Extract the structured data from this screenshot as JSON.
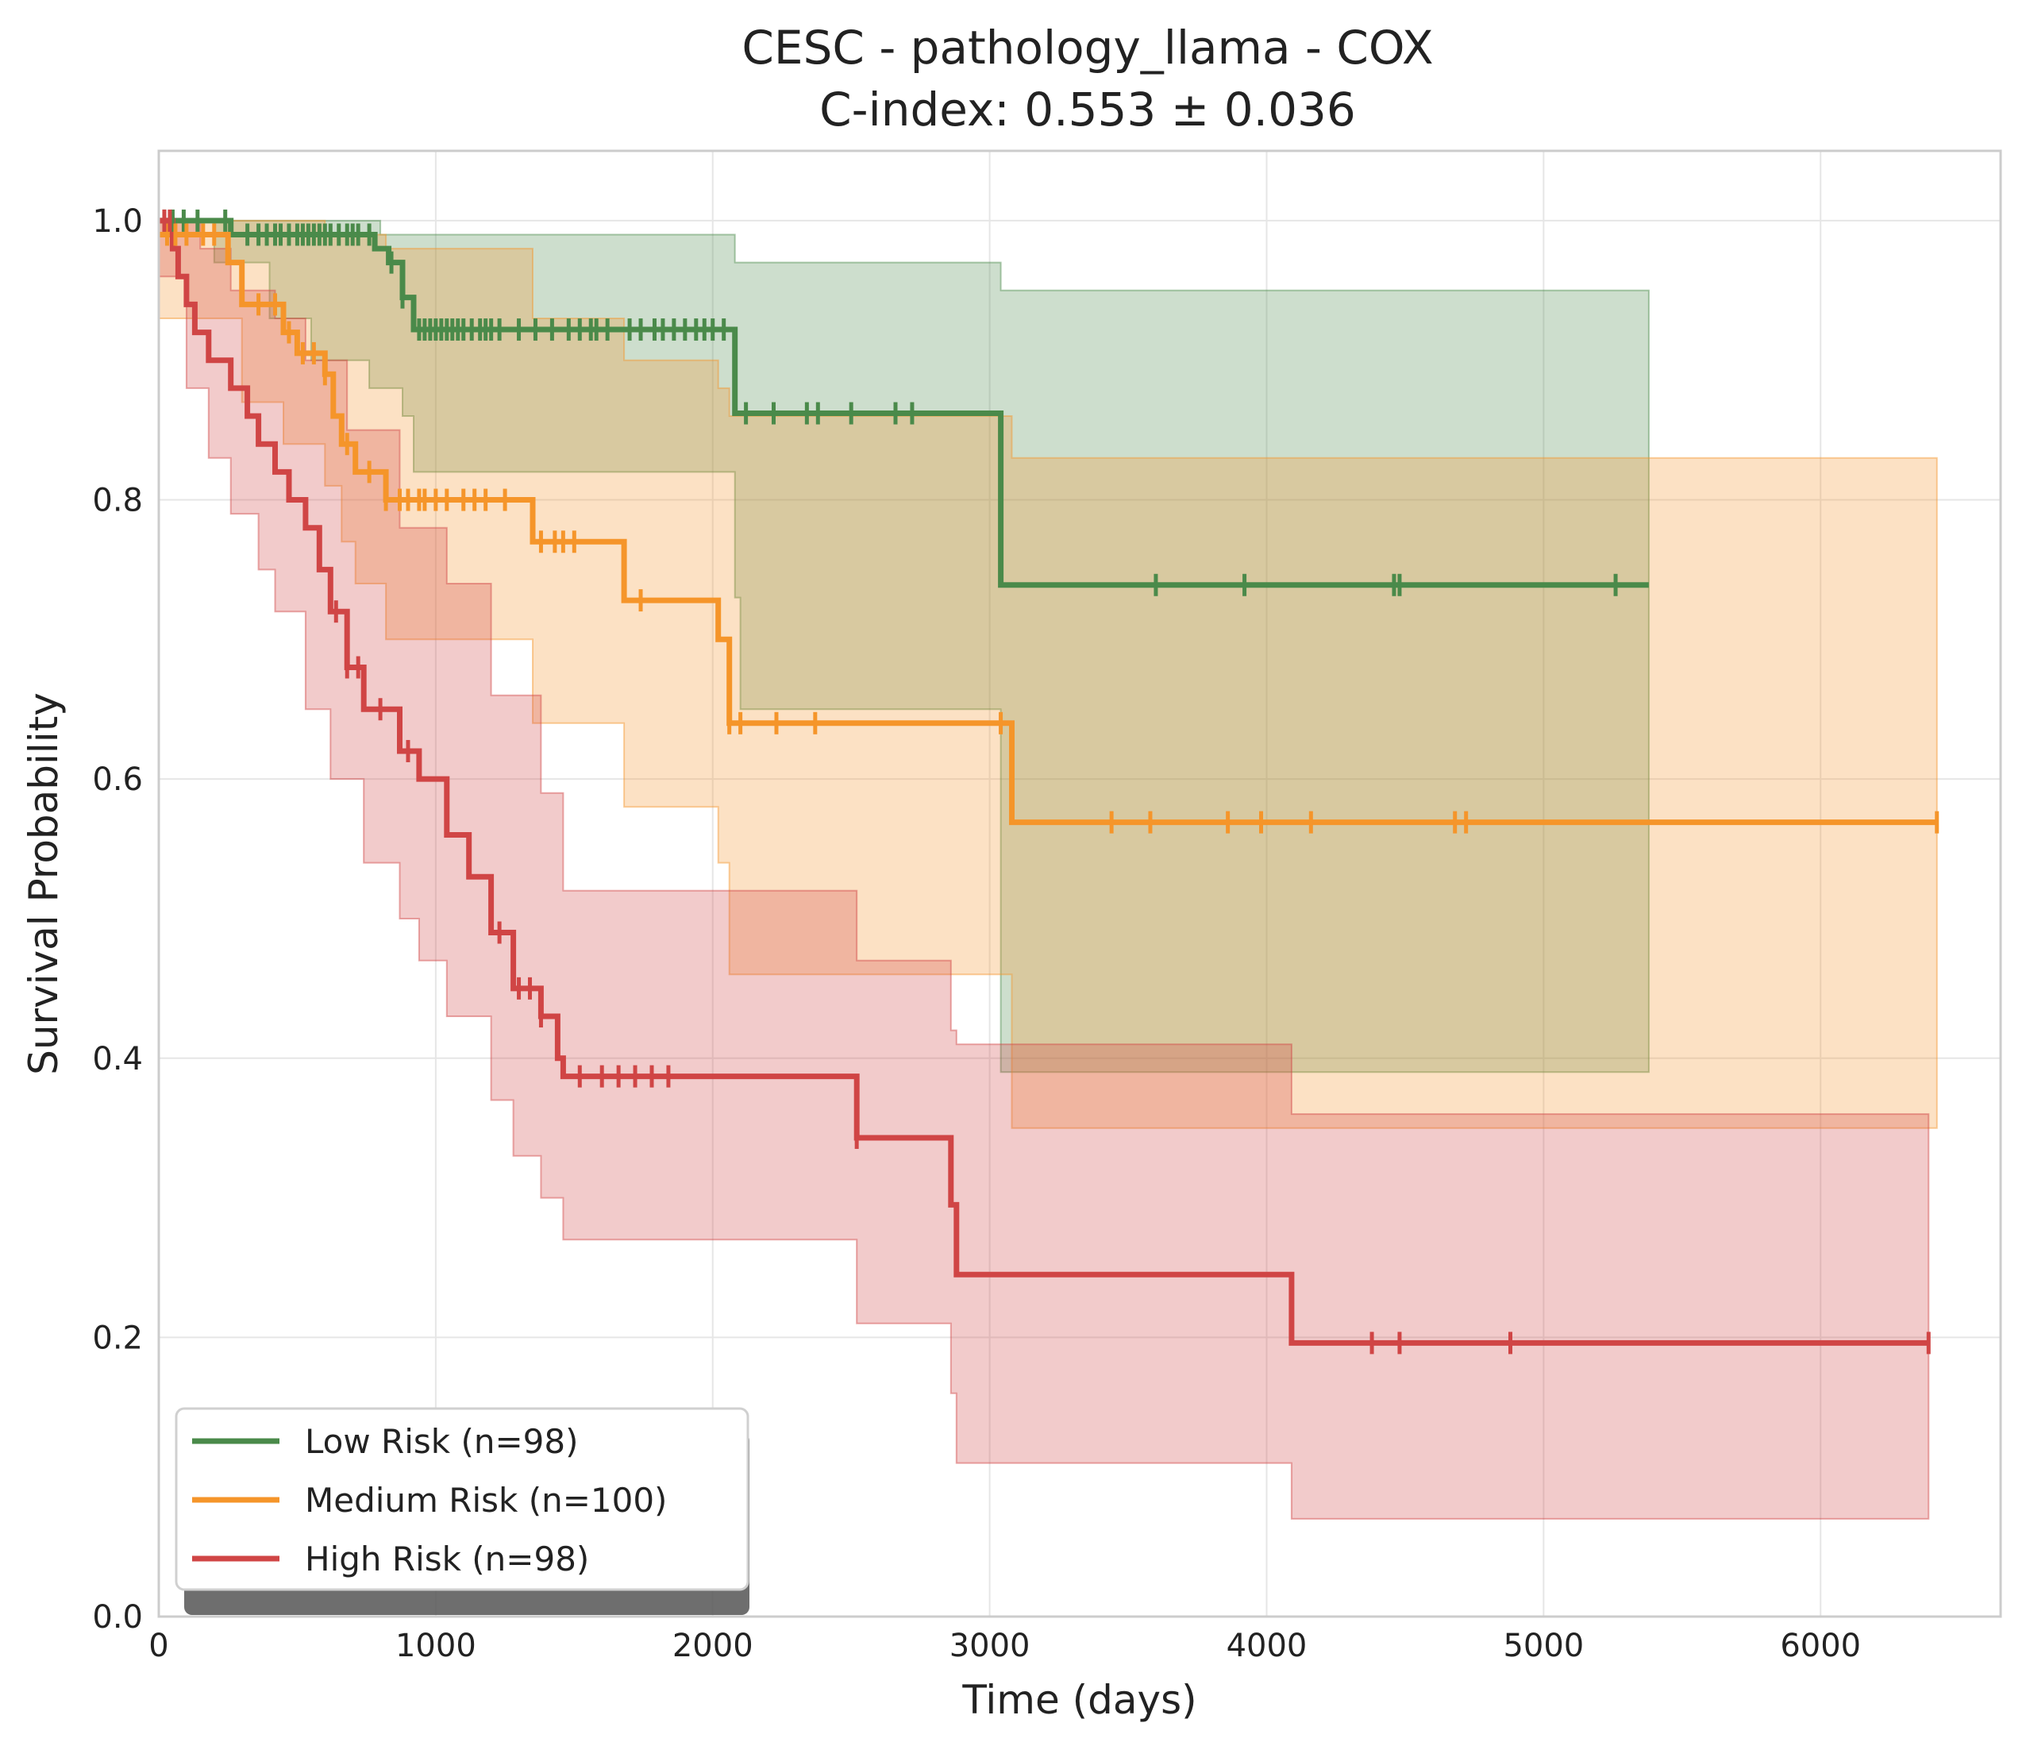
{
  "chart_data": {
    "type": "line",
    "subtype": "kaplan-meier step curves with confidence bands and censor ticks",
    "title_line1": "CESC - pathology_llama - COX",
    "title_line2": "C-index: 0.553 ± 0.036",
    "xlabel": "Time (days)",
    "ylabel": "Survival Probability",
    "xlim": [
      0,
      6650
    ],
    "ylim": [
      0,
      1.05
    ],
    "xticks": [
      0,
      1000,
      2000,
      3000,
      4000,
      5000,
      6000
    ],
    "xtick_labels": [
      "0",
      "1000",
      "2000",
      "3000",
      "4000",
      "5000",
      "6000"
    ],
    "yticks": [
      0,
      0.2,
      0.4,
      0.6,
      0.8,
      1.0
    ],
    "ytick_labels": [
      "0.0",
      "0.2",
      "0.4",
      "0.6",
      "0.8",
      "1.0"
    ],
    "grid": true,
    "legend_position": "lower-left",
    "series": [
      {
        "name": "Low Risk (n=98)",
        "color": "#4a8a4a",
        "steps": [
          [
            0,
            1.0
          ],
          [
            260,
            0.99
          ],
          [
            780,
            0.98
          ],
          [
            830,
            0.97
          ],
          [
            880,
            0.945
          ],
          [
            920,
            0.922
          ],
          [
            2080,
            0.862
          ],
          [
            3040,
            0.739
          ],
          [
            5380,
            0.739
          ]
        ],
        "ci_upper": [
          [
            0,
            1.0
          ],
          [
            800,
            0.99
          ],
          [
            2080,
            0.97
          ],
          [
            3040,
            0.95
          ],
          [
            5380,
            0.905
          ]
        ],
        "ci_lower": [
          [
            0,
            1.0
          ],
          [
            200,
            0.97
          ],
          [
            400,
            0.93
          ],
          [
            550,
            0.9
          ],
          [
            760,
            0.88
          ],
          [
            880,
            0.86
          ],
          [
            920,
            0.82
          ],
          [
            2080,
            0.73
          ],
          [
            2100,
            0.65
          ],
          [
            3040,
            0.39
          ],
          [
            5380,
            0.39
          ]
        ],
        "censor_times": [
          20,
          50,
          90,
          140,
          240,
          320,
          360,
          390,
          420,
          440,
          470,
          500,
          520,
          540,
          560,
          580,
          600,
          620,
          650,
          680,
          700,
          720,
          760,
          840,
          880,
          940,
          960,
          980,
          1000,
          1020,
          1040,
          1060,
          1080,
          1100,
          1130,
          1160,
          1180,
          1200,
          1230,
          1300,
          1360,
          1420,
          1480,
          1520,
          1560,
          1580,
          1620,
          1700,
          1740,
          1790,
          1820,
          1860,
          1900,
          1940,
          1970,
          2000,
          2040,
          2120,
          2220,
          2340,
          2380,
          2500,
          2660,
          2720,
          3600,
          3920,
          4460,
          4480,
          5260
        ]
      },
      {
        "name": "Medium Risk (n=100)",
        "color": "#f5952a",
        "steps": [
          [
            0,
            0.99
          ],
          [
            250,
            0.97
          ],
          [
            300,
            0.94
          ],
          [
            450,
            0.92
          ],
          [
            500,
            0.905
          ],
          [
            600,
            0.89
          ],
          [
            630,
            0.86
          ],
          [
            660,
            0.84
          ],
          [
            710,
            0.82
          ],
          [
            820,
            0.8
          ],
          [
            1350,
            0.77
          ],
          [
            1680,
            0.728
          ],
          [
            2020,
            0.7
          ],
          [
            2060,
            0.64
          ],
          [
            3080,
            0.569
          ],
          [
            6420,
            0.569
          ]
        ],
        "ci_upper": [
          [
            0,
            1.0
          ],
          [
            600,
            0.99
          ],
          [
            820,
            0.98
          ],
          [
            1350,
            0.93
          ],
          [
            1680,
            0.9
          ],
          [
            2020,
            0.88
          ],
          [
            2060,
            0.86
          ],
          [
            3080,
            0.83
          ],
          [
            6420,
            0.73
          ]
        ],
        "ci_lower": [
          [
            0,
            0.93
          ],
          [
            300,
            0.87
          ],
          [
            450,
            0.84
          ],
          [
            600,
            0.81
          ],
          [
            660,
            0.77
          ],
          [
            710,
            0.74
          ],
          [
            820,
            0.7
          ],
          [
            1350,
            0.64
          ],
          [
            1680,
            0.58
          ],
          [
            2020,
            0.54
          ],
          [
            2060,
            0.46
          ],
          [
            3080,
            0.35
          ],
          [
            6420,
            0.35
          ]
        ],
        "censor_times": [
          30,
          60,
          100,
          160,
          200,
          360,
          420,
          470,
          520,
          560,
          600,
          680,
          760,
          820,
          870,
          900,
          940,
          960,
          1000,
          1040,
          1100,
          1140,
          1180,
          1250,
          1380,
          1430,
          1460,
          1500,
          1740,
          2060,
          2100,
          2230,
          2370,
          3040,
          3440,
          3580,
          3860,
          3980,
          4160,
          4680,
          4720,
          6420
        ]
      },
      {
        "name": "High Risk (n=98)",
        "color": "#d04545",
        "steps": [
          [
            0,
            1.0
          ],
          [
            50,
            0.98
          ],
          [
            70,
            0.96
          ],
          [
            100,
            0.94
          ],
          [
            130,
            0.92
          ],
          [
            180,
            0.9
          ],
          [
            260,
            0.88
          ],
          [
            320,
            0.86
          ],
          [
            360,
            0.84
          ],
          [
            420,
            0.82
          ],
          [
            470,
            0.8
          ],
          [
            530,
            0.78
          ],
          [
            580,
            0.75
          ],
          [
            620,
            0.72
          ],
          [
            680,
            0.68
          ],
          [
            740,
            0.65
          ],
          [
            870,
            0.62
          ],
          [
            940,
            0.6
          ],
          [
            1040,
            0.56
          ],
          [
            1120,
            0.53
          ],
          [
            1200,
            0.49
          ],
          [
            1280,
            0.45
          ],
          [
            1380,
            0.43
          ],
          [
            1440,
            0.4
          ],
          [
            1460,
            0.387
          ],
          [
            2520,
            0.343
          ],
          [
            2860,
            0.295
          ],
          [
            2880,
            0.245
          ],
          [
            4090,
            0.196
          ],
          [
            6390,
            0.196
          ]
        ],
        "ci_upper": [
          [
            0,
            1.0
          ],
          [
            150,
            0.98
          ],
          [
            260,
            0.95
          ],
          [
            420,
            0.93
          ],
          [
            530,
            0.9
          ],
          [
            680,
            0.85
          ],
          [
            870,
            0.78
          ],
          [
            1040,
            0.74
          ],
          [
            1200,
            0.66
          ],
          [
            1380,
            0.59
          ],
          [
            1460,
            0.52
          ],
          [
            2520,
            0.47
          ],
          [
            2860,
            0.42
          ],
          [
            2880,
            0.41
          ],
          [
            4090,
            0.36
          ],
          [
            6390,
            0.36
          ]
        ],
        "ci_lower": [
          [
            0,
            0.96
          ],
          [
            100,
            0.88
          ],
          [
            180,
            0.83
          ],
          [
            260,
            0.79
          ],
          [
            360,
            0.75
          ],
          [
            420,
            0.72
          ],
          [
            530,
            0.65
          ],
          [
            620,
            0.6
          ],
          [
            740,
            0.54
          ],
          [
            870,
            0.5
          ],
          [
            940,
            0.47
          ],
          [
            1040,
            0.43
          ],
          [
            1200,
            0.37
          ],
          [
            1280,
            0.33
          ],
          [
            1380,
            0.3
          ],
          [
            1460,
            0.27
          ],
          [
            2520,
            0.21
          ],
          [
            2860,
            0.16
          ],
          [
            2880,
            0.11
          ],
          [
            4090,
            0.07
          ],
          [
            6390,
            0.07
          ]
        ],
        "censor_times": [
          20,
          40,
          640,
          680,
          720,
          800,
          900,
          1230,
          1300,
          1340,
          1380,
          1520,
          1600,
          1660,
          1720,
          1780,
          1840,
          2520,
          4380,
          4480,
          4880,
          6390
        ]
      }
    ]
  }
}
